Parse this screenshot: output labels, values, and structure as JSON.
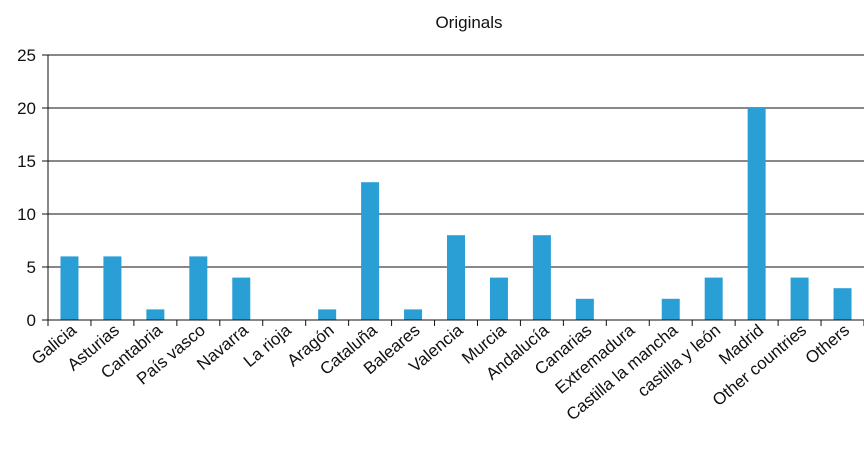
{
  "chart_data": {
    "type": "bar",
    "title": "Originals",
    "xlabel": "",
    "ylabel": "",
    "ylim": [
      0,
      25
    ],
    "yticks": [
      0,
      5,
      10,
      15,
      20,
      25
    ],
    "grid": true,
    "legend": "none",
    "bar_color": "#2a9fd6",
    "categories": [
      "Galicia",
      "Asturias",
      "Cantabria",
      "País vasco",
      "Navarra",
      "La rioja",
      "Aragón",
      "Cataluña",
      "Baleares",
      "Valencia",
      "Murcia",
      "Andalucía",
      "Canarias",
      "Extremadura",
      "Castilla la mancha",
      "castilla y león",
      "Madrid",
      "Other countries",
      "Others"
    ],
    "values": [
      6,
      6,
      1,
      6,
      4,
      0,
      1,
      13,
      1,
      8,
      4,
      8,
      2,
      0,
      2,
      4,
      20,
      4,
      3
    ]
  }
}
